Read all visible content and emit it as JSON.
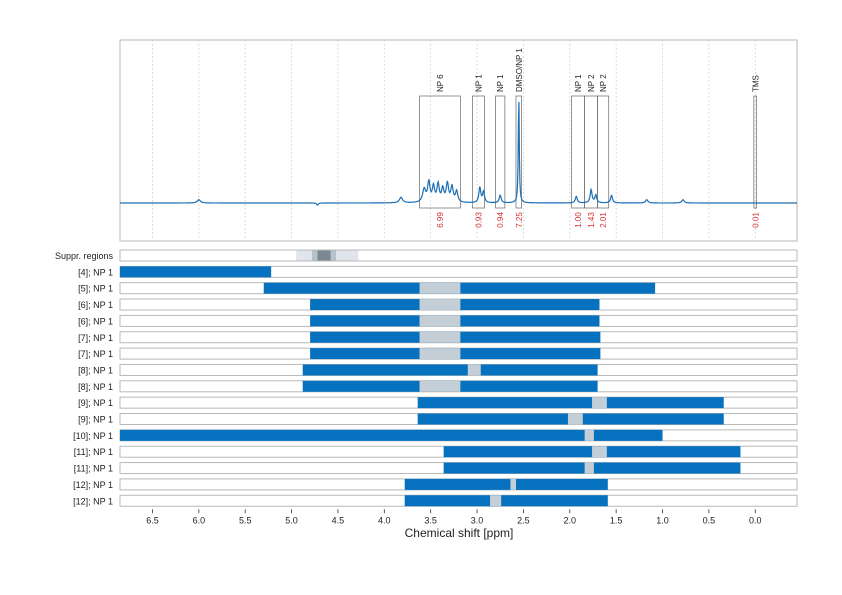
{
  "chart_data": {
    "type": "nmr-spectrum",
    "xlabel": "Chemical shift [ppm]",
    "xlim": [
      6.85,
      -0.45
    ],
    "x_ticks": [
      "6.5",
      "6.0",
      "5.5",
      "5.0",
      "4.5",
      "4.0",
      "3.5",
      "3.0",
      "2.5",
      "2.0",
      "1.5",
      "1.0",
      "0.5",
      "0.0"
    ],
    "x_tick_values": [
      6.5,
      6.0,
      5.5,
      5.0,
      4.5,
      4.0,
      3.5,
      3.0,
      2.5,
      2.0,
      1.5,
      1.0,
      0.5,
      0.0
    ],
    "colors": {
      "spectrum": "#1a6fb5",
      "bar": "#0571bf",
      "gap": "#c4ced6",
      "integral": "#d93030",
      "frame": "#b8b8b8",
      "region_box": "#666666"
    },
    "spectrum_peaks": [
      {
        "ppm": 6.0,
        "height": 0.03,
        "width": 0.02
      },
      {
        "ppm": 4.72,
        "height": -0.02,
        "width": 0.01
      },
      {
        "ppm": 3.82,
        "height": 0.05,
        "width": 0.02
      },
      {
        "ppm": 3.57,
        "height": 0.12,
        "width": 0.02
      },
      {
        "ppm": 3.52,
        "height": 0.18,
        "width": 0.015
      },
      {
        "ppm": 3.47,
        "height": 0.14,
        "width": 0.015
      },
      {
        "ppm": 3.42,
        "height": 0.16,
        "width": 0.015
      },
      {
        "ppm": 3.37,
        "height": 0.12,
        "width": 0.015
      },
      {
        "ppm": 3.32,
        "height": 0.17,
        "width": 0.015
      },
      {
        "ppm": 3.27,
        "height": 0.14,
        "width": 0.015
      },
      {
        "ppm": 3.22,
        "height": 0.1,
        "width": 0.015
      },
      {
        "ppm": 2.97,
        "height": 0.14,
        "width": 0.012
      },
      {
        "ppm": 2.93,
        "height": 0.1,
        "width": 0.012
      },
      {
        "ppm": 2.75,
        "height": 0.07,
        "width": 0.012
      },
      {
        "ppm": 2.55,
        "height": 1.0,
        "width": 0.006
      },
      {
        "ppm": 1.93,
        "height": 0.06,
        "width": 0.012
      },
      {
        "ppm": 1.77,
        "height": 0.12,
        "width": 0.012
      },
      {
        "ppm": 1.72,
        "height": 0.07,
        "width": 0.012
      },
      {
        "ppm": 1.55,
        "height": 0.07,
        "width": 0.012
      },
      {
        "ppm": 1.17,
        "height": 0.03,
        "width": 0.015
      },
      {
        "ppm": 0.78,
        "height": 0.03,
        "width": 0.015
      }
    ],
    "regions": [
      {
        "label": "NP 6",
        "from": 3.62,
        "to": 3.18,
        "integral": "6.99"
      },
      {
        "label": "NP 1",
        "from": 3.05,
        "to": 2.92,
        "integral": "0.93"
      },
      {
        "label": "NP 1",
        "from": 2.8,
        "to": 2.7,
        "integral": "0.94"
      },
      {
        "label": "DMSO/NP 1",
        "from": 2.58,
        "to": 2.52,
        "integral": "7.25"
      },
      {
        "label": "NP 1",
        "from": 1.98,
        "to": 1.84,
        "integral": "1.00"
      },
      {
        "label": "NP 2",
        "from": 1.84,
        "to": 1.7,
        "integral": "1.43"
      },
      {
        "label": "NP 2",
        "from": 1.7,
        "to": 1.58,
        "integral": "2.01"
      },
      {
        "label": "TMS",
        "from": 0.015,
        "to": -0.015,
        "integral": "0.01"
      }
    ],
    "suppressed_regions": {
      "label": "Suppr. regions",
      "light": [
        4.95,
        4.28
      ],
      "medium": [
        4.78,
        4.52
      ],
      "dark": [
        4.72,
        4.58
      ]
    },
    "rows": [
      {
        "label": "[4]; NP 1",
        "start": 6.85,
        "end": 5.22,
        "gaps": []
      },
      {
        "label": "[5]; NP 1",
        "start": 5.3,
        "end": 1.08,
        "gaps": [
          [
            3.62,
            3.18
          ]
        ]
      },
      {
        "label": "[6]; NP 1",
        "start": 4.8,
        "end": 1.68,
        "gaps": [
          [
            3.62,
            3.18
          ]
        ]
      },
      {
        "label": "[6]; NP 1",
        "start": 4.8,
        "end": 1.68,
        "gaps": [
          [
            3.62,
            3.18
          ]
        ]
      },
      {
        "label": "[7]; NP 1",
        "start": 4.8,
        "end": 1.67,
        "gaps": [
          [
            3.62,
            3.18
          ]
        ]
      },
      {
        "label": "[7]; NP 1",
        "start": 4.8,
        "end": 1.67,
        "gaps": [
          [
            3.62,
            3.18
          ]
        ]
      },
      {
        "label": "[8]; NP 1",
        "start": 4.88,
        "end": 1.7,
        "gaps": [
          [
            3.1,
            2.96
          ]
        ]
      },
      {
        "label": "[8]; NP 1",
        "start": 4.88,
        "end": 1.7,
        "gaps": [
          [
            3.62,
            3.18
          ]
        ]
      },
      {
        "label": "[9]; NP 1",
        "start": 3.64,
        "end": 0.34,
        "gaps": [
          [
            1.76,
            1.6
          ]
        ]
      },
      {
        "label": "[9]; NP 1",
        "start": 3.64,
        "end": 0.34,
        "gaps": [
          [
            2.02,
            1.86
          ]
        ]
      },
      {
        "label": "[10]; NP 1",
        "start": 6.85,
        "end": 1.0,
        "gaps": [
          [
            1.84,
            1.74
          ]
        ]
      },
      {
        "label": "[11]; NP 1",
        "start": 3.36,
        "end": 0.16,
        "gaps": [
          [
            1.76,
            1.6
          ]
        ]
      },
      {
        "label": "[11]; NP 1",
        "start": 3.36,
        "end": 0.16,
        "gaps": [
          [
            1.84,
            1.74
          ]
        ]
      },
      {
        "label": "[12]; NP 1",
        "start": 3.78,
        "end": 1.59,
        "gaps": [
          [
            2.64,
            2.58
          ]
        ]
      },
      {
        "label": "[12]; NP 1",
        "start": 3.78,
        "end": 1.59,
        "gaps": [
          [
            2.86,
            2.74
          ]
        ]
      }
    ]
  }
}
